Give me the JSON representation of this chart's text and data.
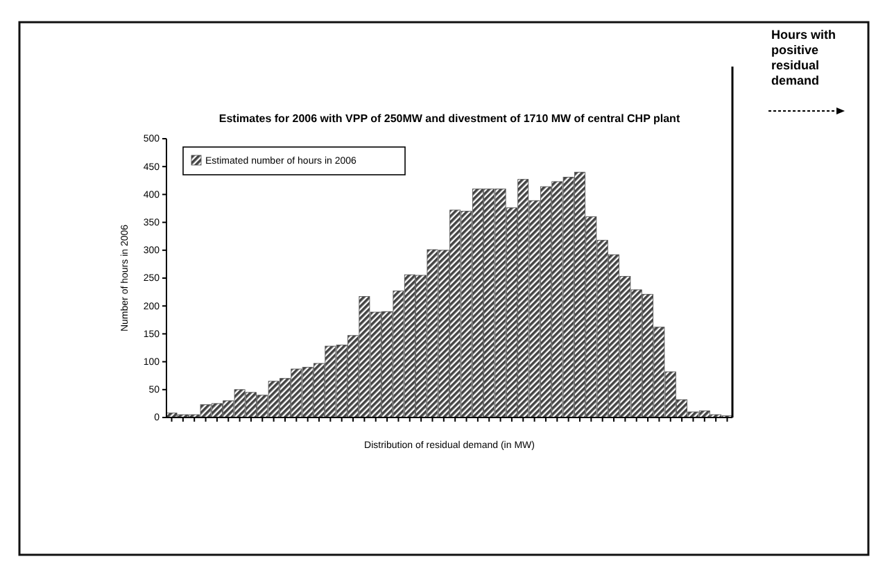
{
  "chart_data": {
    "type": "bar",
    "title": "Estimates for 2006 with VPP of 250MW and divestment of 1710 MW of central CHP plant",
    "xlabel": "Distribution of residual demand (in MW)",
    "ylabel": "Number of hours in 2006",
    "annotations": [
      "Hours with positive residual demand"
    ],
    "categories": [
      null,
      null,
      null,
      null,
      null,
      null,
      null,
      null,
      null,
      null,
      null,
      null,
      null,
      null,
      null,
      null,
      null,
      null,
      null,
      null,
      null,
      null,
      null,
      null,
      null,
      null,
      null,
      null,
      null,
      null,
      null,
      null,
      null,
      null,
      null,
      null,
      null,
      null,
      null,
      null,
      null,
      null,
      null,
      null,
      null,
      null,
      null,
      null,
      null,
      null
    ],
    "series": [
      {
        "name": "Estimated number of hours in 2006",
        "color": "#444444",
        "values": [
          8,
          5,
          5,
          23,
          25,
          30,
          50,
          45,
          40,
          65,
          70,
          87,
          90,
          97,
          128,
          130,
          147,
          217,
          189,
          190,
          227,
          256,
          255,
          301,
          300,
          372,
          370,
          410,
          410,
          410,
          376,
          427,
          389,
          414,
          423,
          431,
          440,
          360,
          318,
          292,
          253,
          229,
          221,
          162,
          82,
          32,
          10,
          12,
          5,
          3
        ]
      }
    ],
    "ylim": [
      0,
      500
    ],
    "yticks": [
      0,
      50,
      100,
      150,
      200,
      250,
      300,
      350,
      400,
      450,
      500
    ],
    "legend": "top left"
  }
}
